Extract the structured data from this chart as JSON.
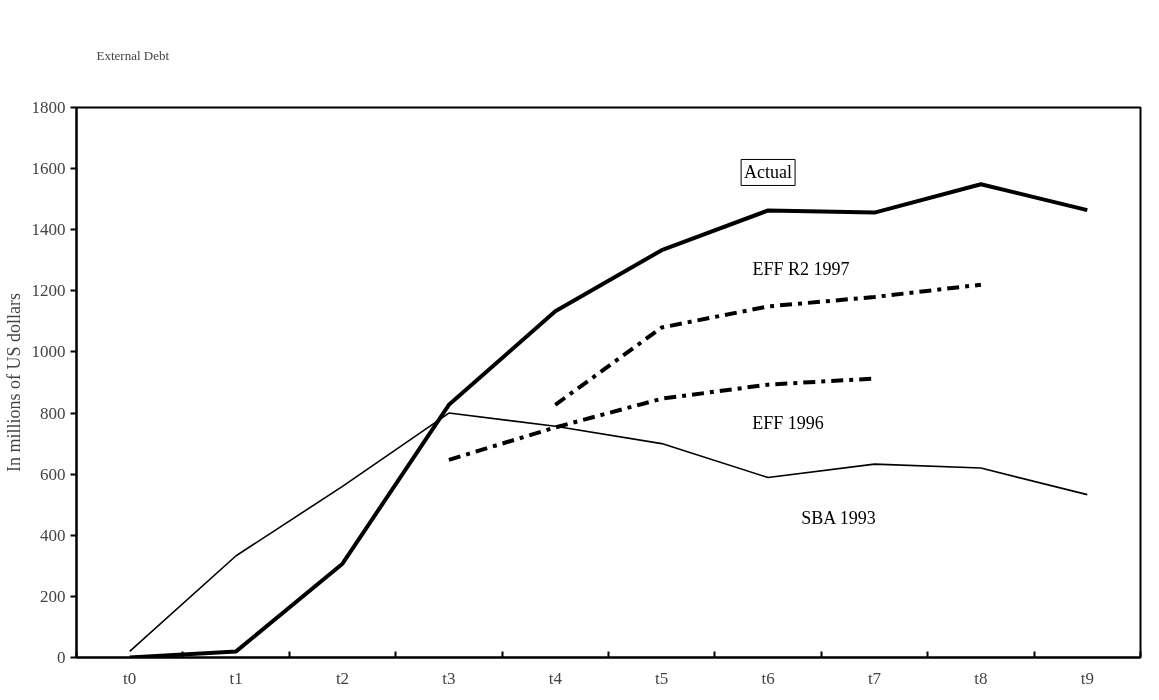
{
  "chart_data": {
    "type": "line",
    "title": "External Debt",
    "ylabel": "In millions of US dollars",
    "categories": [
      "t0",
      "t1",
      "t2",
      "t3",
      "t4",
      "t5",
      "t6",
      "t7",
      "t8",
      "t9"
    ],
    "series": [
      {
        "name": "Actual",
        "color": "#000000",
        "line_style": "solid",
        "values": [
          0,
          20,
          307,
          827,
          1133,
          1333,
          1463,
          1456,
          1549,
          1464
        ]
      },
      {
        "name": "SBA 1993",
        "color": "#000000",
        "line_style": "solid",
        "values": [
          20,
          333,
          560,
          800,
          757,
          700,
          589,
          633,
          620,
          533
        ]
      },
      {
        "name": "EFF 1996",
        "color": "#000000",
        "line_style": "dashed",
        "values": [
          null,
          null,
          null,
          647,
          753,
          847,
          893,
          913,
          null,
          null
        ]
      },
      {
        "name": "EFF R2 1997",
        "color": "#000000",
        "line_style": "dashed",
        "values": [
          null,
          null,
          null,
          null,
          827,
          1080,
          1149,
          1180,
          1220,
          null
        ]
      }
    ],
    "ylim": [
      0,
      1800
    ],
    "yticks": [
      0,
      200,
      400,
      600,
      800,
      1000,
      1200,
      1400,
      1600,
      1800
    ],
    "grid": false,
    "marker": "none"
  }
}
